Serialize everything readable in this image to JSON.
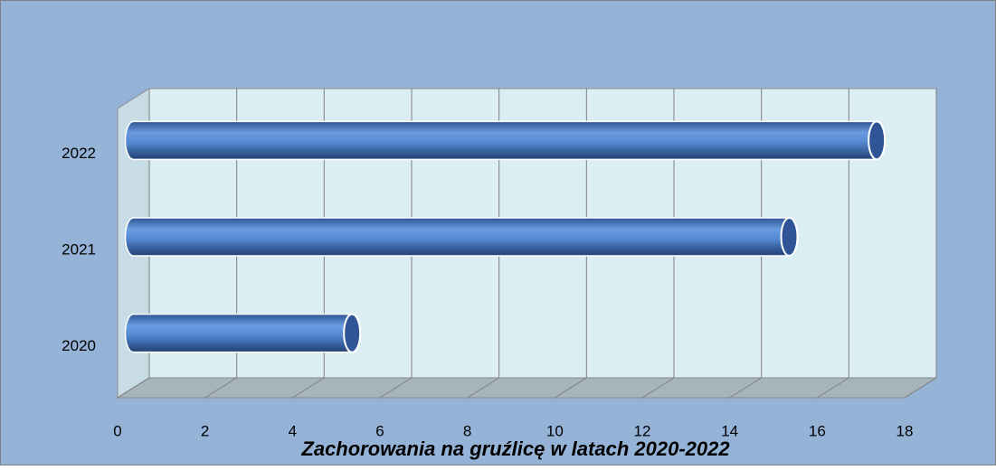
{
  "chart_data": {
    "type": "bar3d",
    "orientation": "horizontal",
    "title": "Zachorowania na gruźlicę w latach 2020-2022",
    "categories": [
      "2020",
      "2021",
      "2022"
    ],
    "values": [
      5,
      15,
      17
    ],
    "color": "#4f81bd",
    "xlim": [
      0,
      18
    ],
    "xticks": [
      0,
      2,
      4,
      6,
      8,
      10,
      12,
      14,
      16,
      18
    ],
    "grid": true
  }
}
